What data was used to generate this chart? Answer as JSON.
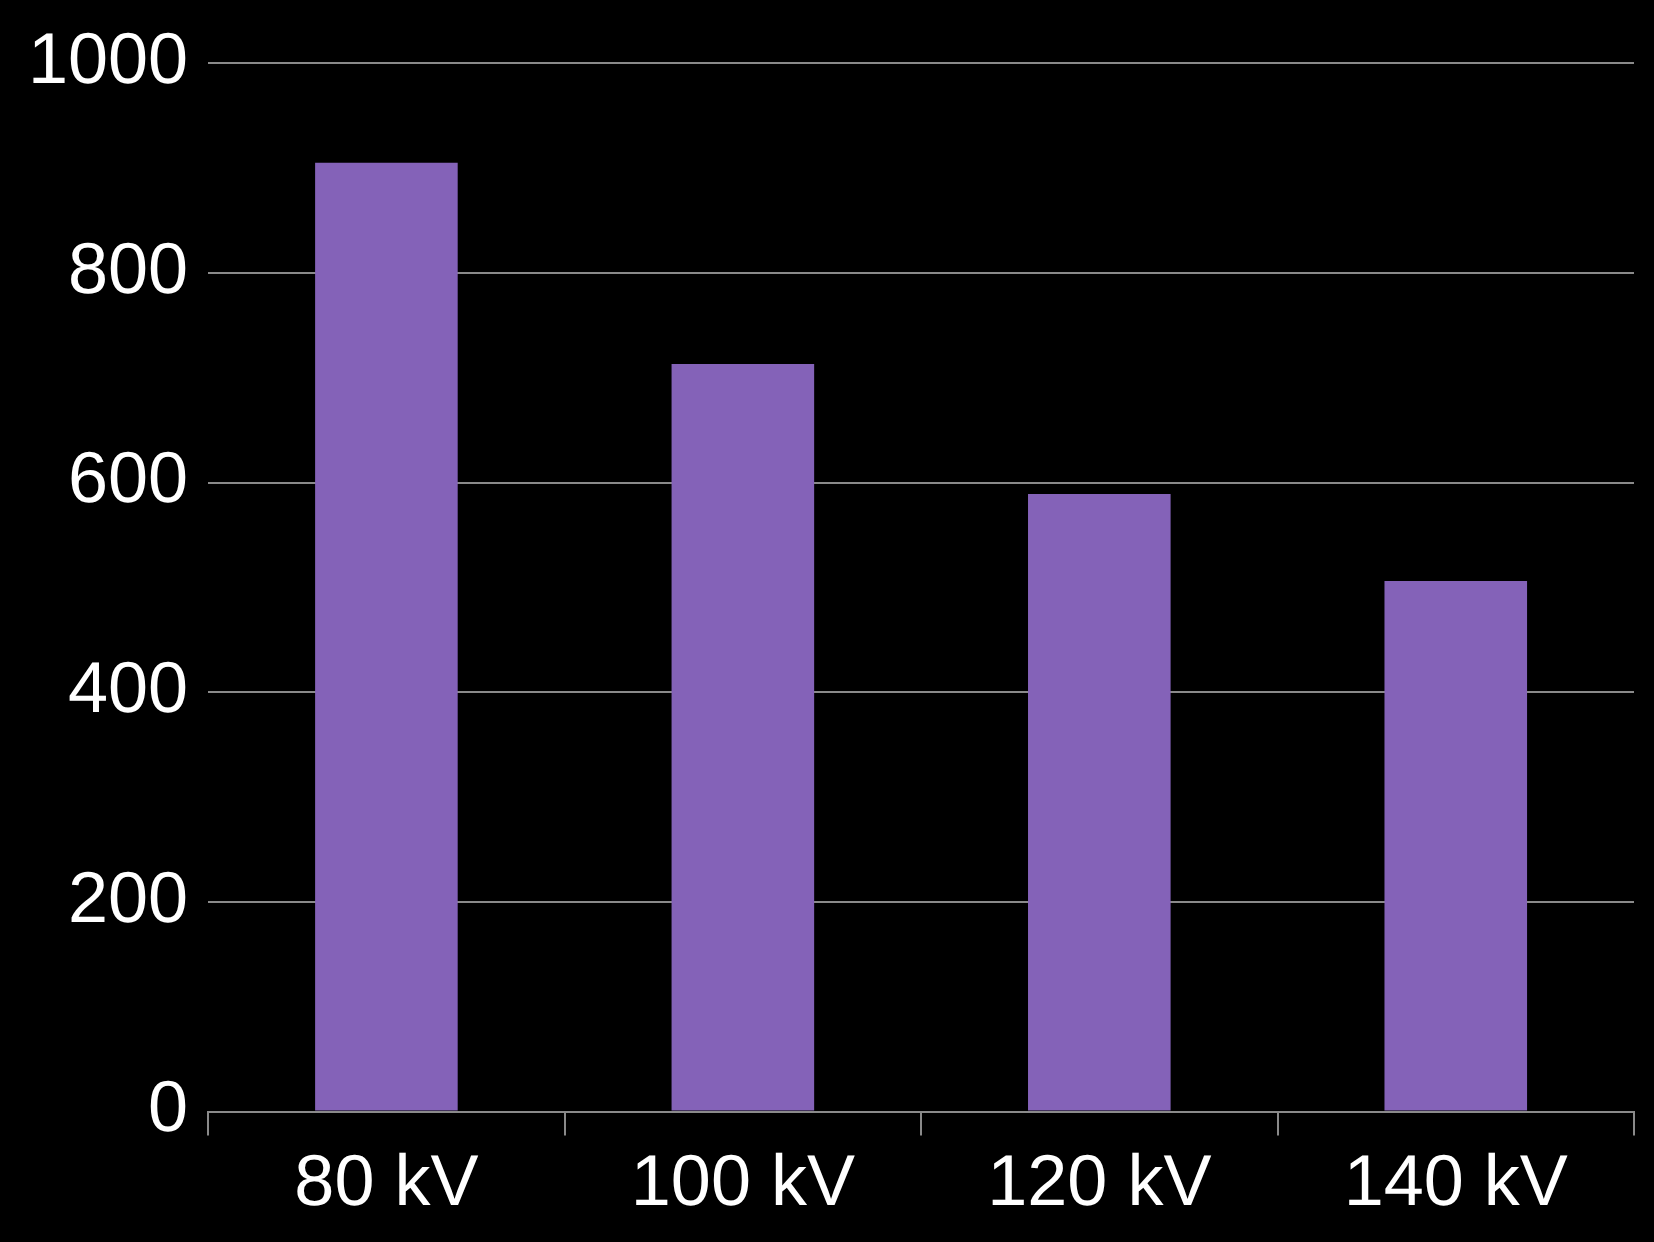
{
  "chart_data": {
    "type": "bar",
    "categories": [
      "80 kV",
      "100 kV",
      "120 kV",
      "140 kV"
    ],
    "values": [
      905,
      713,
      589,
      506
    ],
    "color": "#8462b8",
    "ylim": [
      0,
      1000
    ],
    "yticks": [
      0,
      200,
      400,
      600,
      800,
      1000
    ],
    "grid": "y"
  }
}
